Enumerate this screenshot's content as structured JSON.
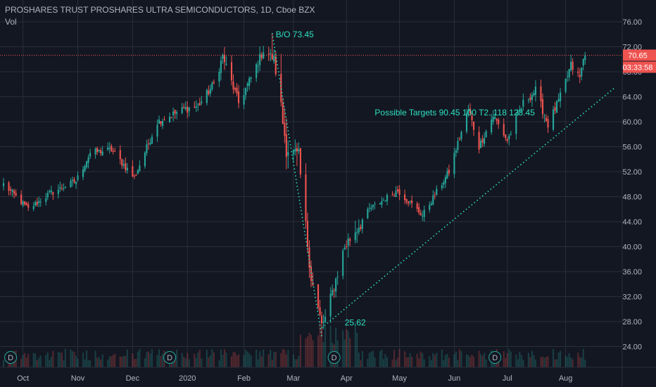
{
  "header": {
    "symbol_line": "PROSHARES TRUST PROSHARES ULTRA SEMICONDUCTORS, 1D, Cboe BZX",
    "volume_label": "Vol"
  },
  "price_badge": {
    "value": "70.65",
    "countdown": "03:33:58"
  },
  "colors": {
    "background": "#131722",
    "grid": "#2a2e39",
    "up": "#26a69a",
    "down": "#ef5350",
    "annotation": "#2de0c0",
    "price_line": "#ef5350",
    "axis_text": "#b2b5be",
    "dividend_marker": "#26a69a"
  },
  "chart_data": {
    "type": "candlestick",
    "ylim": [
      20,
      78
    ],
    "y_ticks": [
      "76.00",
      "72.00",
      "68.00",
      "64.00",
      "60.00",
      "56.00",
      "52.00",
      "48.00",
      "44.00",
      "40.00",
      "36.00",
      "32.00",
      "28.00",
      "24.00"
    ],
    "x_ticks": [
      {
        "label": "Oct",
        "x": "2019-10-01"
      },
      {
        "label": "Nov",
        "x": "2019-11-01"
      },
      {
        "label": "Dec",
        "x": "2019-12-02"
      },
      {
        "label": "2020",
        "x": "2020-01-02"
      },
      {
        "label": "Feb",
        "x": "2020-02-03"
      },
      {
        "label": "Mar",
        "x": "2020-03-02"
      },
      {
        "label": "Apr",
        "x": "2020-04-01"
      },
      {
        "label": "May",
        "x": "2020-05-01"
      },
      {
        "label": "Jun",
        "x": "2020-06-01"
      },
      {
        "label": "Jul",
        "x": "2020-07-01"
      },
      {
        "label": "Aug",
        "x": "2020-08-03"
      }
    ],
    "close_anchors": [
      [
        "2019-09-20",
        50.0
      ],
      [
        "2019-10-04",
        46.0
      ],
      [
        "2019-10-16",
        48.5
      ],
      [
        "2019-10-31",
        50.5
      ],
      [
        "2019-11-08",
        55.0
      ],
      [
        "2019-11-20",
        55.5
      ],
      [
        "2019-12-03",
        51.0
      ],
      [
        "2019-12-16",
        60.0
      ],
      [
        "2019-12-31",
        62.0
      ],
      [
        "2020-01-08",
        62.5
      ],
      [
        "2020-01-17",
        66.0
      ],
      [
        "2020-01-22",
        70.5
      ],
      [
        "2020-01-31",
        63.0
      ],
      [
        "2020-02-07",
        67.0
      ],
      [
        "2020-02-14",
        71.5
      ],
      [
        "2020-02-20",
        70.0
      ],
      [
        "2020-02-27",
        56.0
      ],
      [
        "2020-03-05",
        54.0
      ],
      [
        "2020-03-12",
        35.0
      ],
      [
        "2020-03-18",
        27.5
      ],
      [
        "2020-03-20",
        28.5
      ],
      [
        "2020-03-31",
        40.0
      ],
      [
        "2020-04-14",
        46.0
      ],
      [
        "2020-04-30",
        49.0
      ],
      [
        "2020-05-14",
        45.0
      ],
      [
        "2020-05-29",
        52.0
      ],
      [
        "2020-06-09",
        62.0
      ],
      [
        "2020-06-15",
        56.0
      ],
      [
        "2020-06-23",
        61.0
      ],
      [
        "2020-07-01",
        57.0
      ],
      [
        "2020-07-10",
        63.0
      ],
      [
        "2020-07-17",
        65.0
      ],
      [
        "2020-07-24",
        59.5
      ],
      [
        "2020-07-31",
        64.0
      ],
      [
        "2020-08-06",
        69.0
      ],
      [
        "2020-08-11",
        67.0
      ],
      [
        "2020-08-14",
        71.5
      ]
    ],
    "last_close": 70.65,
    "swing_low": {
      "x": "2020-03-18",
      "y": 25.62
    },
    "swing_high": {
      "x": "2020-02-19",
      "y": 74.2
    },
    "price_line": {
      "y": 70.65
    },
    "downtrend_line": {
      "from": {
        "x": "2020-02-19",
        "y": 74.2
      },
      "to": {
        "x": "2020-03-18",
        "y": 25.62
      }
    },
    "uptrend_line": {
      "from": {
        "x": "2020-03-18",
        "y": 27.0
      },
      "to": {
        "x": "2020-08-31",
        "y": 65.5
      }
    },
    "annotations": [
      {
        "text": "B/O 73.45",
        "x": "2020-02-21",
        "y": 73.5
      },
      {
        "text": "Possible Targets 90.45  100  T2. 118  123.45",
        "x": "2020-04-17",
        "y": 61.0
      },
      {
        "text": "25.62",
        "x": "2020-03-31",
        "y": 27.4
      }
    ],
    "dividend_markers": [
      {
        "label": "D",
        "x": "2019-09-24"
      },
      {
        "label": "D",
        "x": "2019-12-23"
      },
      {
        "label": "D",
        "x": "2020-03-25"
      },
      {
        "label": "D",
        "x": "2020-06-24"
      }
    ]
  }
}
